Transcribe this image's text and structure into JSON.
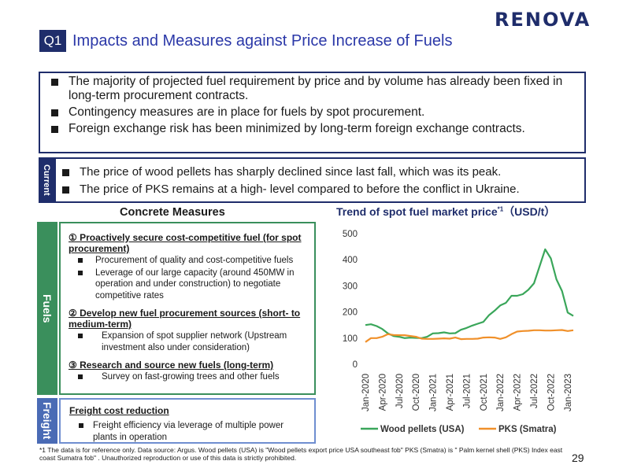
{
  "header": {
    "logo": "RENOVA",
    "badge": "Q1",
    "title": "Impacts and Measures against Price Increase of Fuels"
  },
  "summary": [
    "The majority of projected fuel requirement by price and by volume has already been fixed in long-term procurement contracts.",
    "Contingency measures are in place for fuels by spot procurement.",
    "Foreign exchange risk has been minimized by long-term foreign exchange contracts."
  ],
  "current": {
    "tab_label": "Current",
    "items": [
      "The price of wood pellets has sharply declined since last fall, which was its peak.",
      "The price of PKS remains at a high- level compared to before the conflict in Ukraine."
    ]
  },
  "measures": {
    "heading": "Concrete Measures",
    "fuels_tab": "Fuels",
    "blocks": [
      {
        "title": "① Proactively secure cost-competitive fuel (for spot procurement)",
        "items": [
          "Procurement of quality and cost-competitive fuels",
          "Leverage of our large capacity (around 450MW in operation and under construction) to negotiate competitive rates"
        ]
      },
      {
        "title": "② Develop new fuel procurement sources (short- to medium-term)",
        "items": [
          "Expansion of spot supplier network (Upstream investment also under consideration)"
        ]
      },
      {
        "title": "③ Research and source new fuels (long-term)",
        "items": [
          "Survey on fast-growing trees and other fuels"
        ]
      }
    ],
    "freight_tab": "Freight",
    "freight": {
      "title": "Freight cost reduction",
      "items": [
        "Freight efficiency via leverage of multiple power plants in operation"
      ]
    }
  },
  "chart_title": {
    "main": "Trend of spot fuel market price",
    "sup": "*1",
    "unit": "（USD/t）"
  },
  "chart_data": {
    "type": "line",
    "title": "Trend of spot fuel market price (USD/t)",
    "ylim": [
      0,
      500
    ],
    "yticks": [
      "0",
      "100",
      "200",
      "300",
      "400",
      "500"
    ],
    "xticks": [
      "Jan-2020",
      "Apr-2020",
      "Jul-2020",
      "Oct-2020",
      "Jan-2021",
      "Apr-2021",
      "Jul-2021",
      "Oct-2021",
      "Jan-2022",
      "Apr-2022",
      "Jul-2022",
      "Oct-2022",
      "Jan-2023"
    ],
    "series": [
      {
        "name": "Wood pellets (USA)",
        "color": "#3aa65a",
        "values": [
          150,
          153,
          146,
          135,
          118,
          108,
          105,
          100,
          102,
          101,
          100,
          105,
          118,
          119,
          122,
          118,
          119,
          132,
          139,
          148,
          155,
          162,
          188,
          205,
          225,
          235,
          262,
          262,
          268,
          285,
          310,
          375,
          440,
          405,
          325,
          280,
          198,
          185
        ]
      },
      {
        "name": "PKS (Smatra)",
        "color": "#f0902a",
        "values": [
          85,
          100,
          100,
          105,
          115,
          112,
          111,
          111,
          108,
          105,
          98,
          97,
          97,
          98,
          99,
          98,
          102,
          96,
          97,
          97,
          98,
          102,
          103,
          102,
          97,
          103,
          115,
          125,
          127,
          128,
          130,
          130,
          129,
          129,
          130,
          131,
          127,
          130
        ]
      }
    ]
  },
  "footnote": "*1 The data is for reference only. Data source: Argus. Wood pellets (USA) is \"Wood pellets export price USA southeast fob\" PKS (Smatra) is \" Palm kernel shell (PKS) Index east coast Sumatra fob\" . Unauthorized reproduction or use of this data is strictly prohibited.",
  "page_number": "29"
}
